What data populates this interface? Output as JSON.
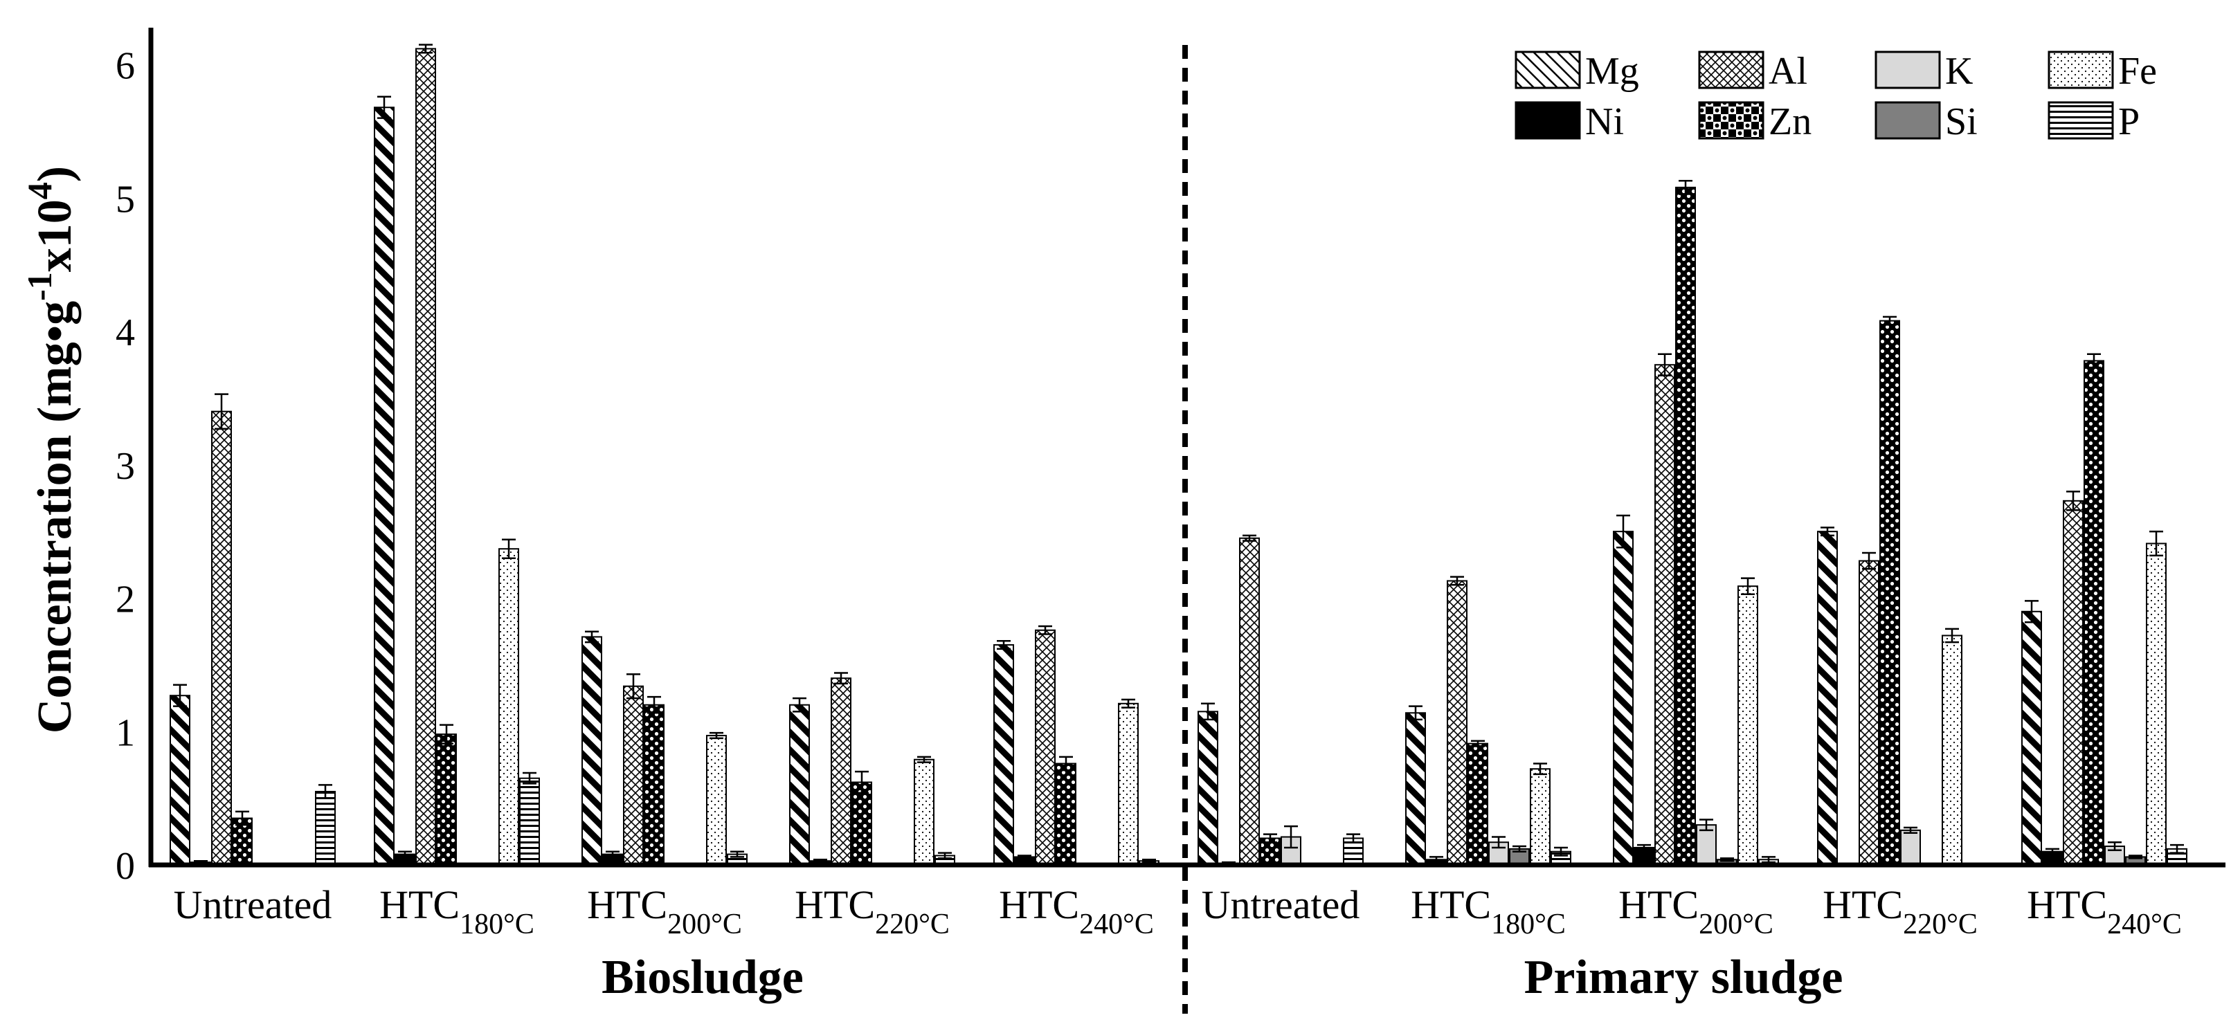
{
  "chart_data": {
    "type": "bar",
    "ylabel": {
      "main": "Concentration (mg•g",
      "sup1": "-1",
      "mid": "x10",
      "sup2": "4",
      "end": ")"
    },
    "ylim": [
      0,
      6.2
    ],
    "yticks": [
      "0",
      "1",
      "2",
      "3",
      "4",
      "5",
      "6"
    ],
    "legend_position": "top-right",
    "sections": [
      "Biosludge",
      "Primary sludge"
    ],
    "categories": [
      {
        "section": 0,
        "base": "Untreated",
        "sub": ""
      },
      {
        "section": 0,
        "base": "HTC",
        "sub": "180°C"
      },
      {
        "section": 0,
        "base": "HTC",
        "sub": "200°C"
      },
      {
        "section": 0,
        "base": "HTC",
        "sub": "220°C"
      },
      {
        "section": 0,
        "base": "HTC",
        "sub": "240°C"
      },
      {
        "section": 1,
        "base": "Untreated",
        "sub": ""
      },
      {
        "section": 1,
        "base": "HTC",
        "sub": "180°C"
      },
      {
        "section": 1,
        "base": "HTC",
        "sub": "200°C"
      },
      {
        "section": 1,
        "base": "HTC",
        "sub": "220°C"
      },
      {
        "section": 1,
        "base": "HTC",
        "sub": "240°C"
      }
    ],
    "series": [
      {
        "name": "Mg",
        "pattern": "diag",
        "values": [
          1.27,
          5.68,
          1.71,
          1.2,
          1.65,
          1.15,
          1.14,
          2.5,
          2.5,
          1.9
        ],
        "errors": [
          0.08,
          0.08,
          0.04,
          0.05,
          0.03,
          0.06,
          0.05,
          0.12,
          0.03,
          0.08
        ]
      },
      {
        "name": "Ni",
        "pattern": "solid-black",
        "values": [
          0.02,
          0.08,
          0.08,
          0.03,
          0.06,
          0.01,
          0.04,
          0.13,
          0.01,
          0.1
        ],
        "errors": [
          0.01,
          0.02,
          0.02,
          0.01,
          0.01,
          0.01,
          0.02,
          0.02,
          0.0,
          0.02
        ]
      },
      {
        "name": "Al",
        "pattern": "crosshatch",
        "values": [
          3.4,
          6.12,
          1.34,
          1.4,
          1.76,
          2.45,
          2.13,
          3.75,
          2.28,
          2.73
        ],
        "errors": [
          0.13,
          0.03,
          0.09,
          0.04,
          0.03,
          0.02,
          0.03,
          0.08,
          0.06,
          0.07
        ]
      },
      {
        "name": "Zn",
        "pattern": "checker",
        "values": [
          0.35,
          0.98,
          1.2,
          0.62,
          0.76,
          0.2,
          0.91,
          5.08,
          4.08,
          3.78
        ],
        "errors": [
          0.05,
          0.07,
          0.06,
          0.08,
          0.05,
          0.03,
          0.02,
          0.05,
          0.03,
          0.05
        ]
      },
      {
        "name": "K",
        "pattern": "light-gray",
        "values": [
          0.0,
          0.01,
          0.0,
          0.0,
          0.0,
          0.21,
          0.17,
          0.3,
          0.26,
          0.14
        ],
        "errors": [
          0.0,
          0.0,
          0.0,
          0.0,
          0.0,
          0.08,
          0.04,
          0.04,
          0.02,
          0.03
        ]
      },
      {
        "name": "Si",
        "pattern": "dark-gray",
        "values": [
          0.0,
          0.0,
          0.0,
          0.0,
          0.0,
          0.0,
          0.12,
          0.04,
          0.0,
          0.06
        ],
        "errors": [
          0.0,
          0.0,
          0.0,
          0.0,
          0.0,
          0.0,
          0.02,
          0.01,
          0.0,
          0.01
        ]
      },
      {
        "name": "Fe",
        "pattern": "dots",
        "values": [
          0.0,
          2.37,
          0.97,
          0.79,
          1.21,
          0.0,
          0.72,
          2.09,
          1.72,
          2.41
        ],
        "errors": [
          0.0,
          0.07,
          0.02,
          0.02,
          0.03,
          0.0,
          0.04,
          0.06,
          0.05,
          0.09
        ]
      },
      {
        "name": "P",
        "pattern": "hlines",
        "values": [
          0.55,
          0.65,
          0.08,
          0.07,
          0.03,
          0.2,
          0.1,
          0.04,
          0.01,
          0.12
        ],
        "errors": [
          0.05,
          0.04,
          0.02,
          0.02,
          0.01,
          0.03,
          0.03,
          0.02,
          0.0,
          0.03
        ]
      }
    ],
    "legend_order": [
      "Mg",
      "Al",
      "K",
      "Fe",
      "Ni",
      "Zn",
      "Si",
      "P"
    ]
  }
}
